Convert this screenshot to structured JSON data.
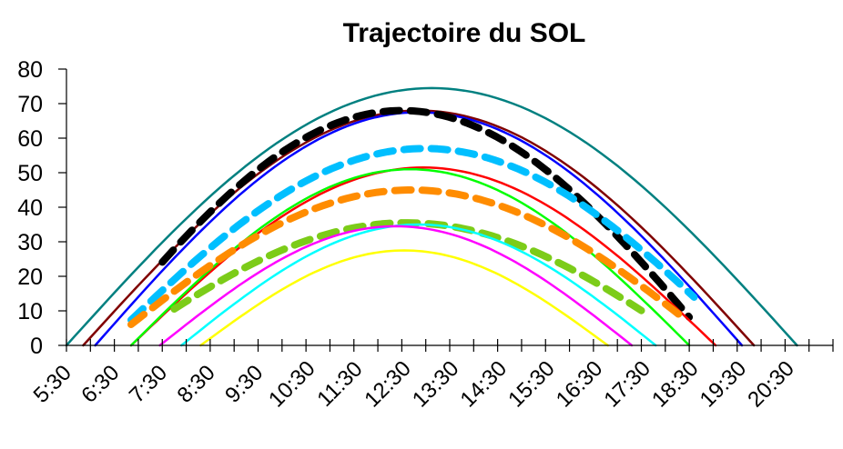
{
  "chart_data": {
    "type": "line",
    "title": "Trajectoire du SOL",
    "xlabel": "",
    "ylabel": "",
    "ylim": [
      0,
      80
    ],
    "yticks": [
      "0",
      "10",
      "20",
      "30",
      "40",
      "50",
      "60",
      "70",
      "80"
    ],
    "xlim": [
      5.5,
      21.5
    ],
    "xticks": [
      "5:30",
      "6:30",
      "7:30",
      "8:30",
      "9:30",
      "10:30",
      "11:30",
      "12:30",
      "13:30",
      "14:30",
      "15:30",
      "16:30",
      "17:30",
      "18:30",
      "19:30",
      "20:30"
    ],
    "grid": false,
    "legend": "none",
    "series": [
      {
        "color": "#008080",
        "dashed": false,
        "rise": 5.5,
        "set": 20.75,
        "peak": 74.5,
        "x_start": 5.5,
        "x_end": 20.75
      },
      {
        "color": "#800000",
        "dashed": false,
        "rise": 5.85,
        "set": 19.85,
        "peak": 68,
        "x_start": 5.85,
        "x_end": 19.85
      },
      {
        "color": "#0000ff",
        "dashed": false,
        "rise": 6.1,
        "set": 19.6,
        "peak": 67.5,
        "x_start": 6.1,
        "x_end": 19.6
      },
      {
        "color": "#000000",
        "dashed": true,
        "rise": 6.0,
        "set": 19.0,
        "peak": 68,
        "x_start": 7.5,
        "x_end": 18.5
      },
      {
        "color": "#00bfff",
        "dashed": true,
        "rise": 6.3,
        "set": 19.65,
        "peak": 57,
        "x_start": 6.85,
        "x_end": 18.6
      },
      {
        "color": "#ff0000",
        "dashed": false,
        "rise": 6.85,
        "set": 19.05,
        "peak": 51.5,
        "x_start": 6.85,
        "x_end": 19.05
      },
      {
        "color": "#00ff00",
        "dashed": false,
        "rise": 6.85,
        "set": 18.5,
        "peak": 51,
        "x_start": 6.85,
        "x_end": 18.5
      },
      {
        "color": "#ff8c00",
        "dashed": true,
        "rise": 6.3,
        "set": 19.1,
        "peak": 45,
        "x_start": 6.85,
        "x_end": 18.4
      },
      {
        "color": "#7ccc19",
        "dashed": true,
        "rise": 6.6,
        "set": 18.6,
        "peak": 35.5,
        "x_start": 7.75,
        "x_end": 17.5
      },
      {
        "color": "#00ffff",
        "dashed": false,
        "rise": 7.9,
        "set": 17.8,
        "peak": 35,
        "x_start": 7.9,
        "x_end": 17.8
      },
      {
        "color": "#ff00ff",
        "dashed": false,
        "rise": 7.45,
        "set": 17.3,
        "peak": 34.5,
        "x_start": 7.45,
        "x_end": 17.3
      },
      {
        "color": "#ffff00",
        "dashed": false,
        "rise": 8.3,
        "set": 16.8,
        "peak": 27.5,
        "x_start": 8.3,
        "x_end": 16.8
      }
    ]
  }
}
